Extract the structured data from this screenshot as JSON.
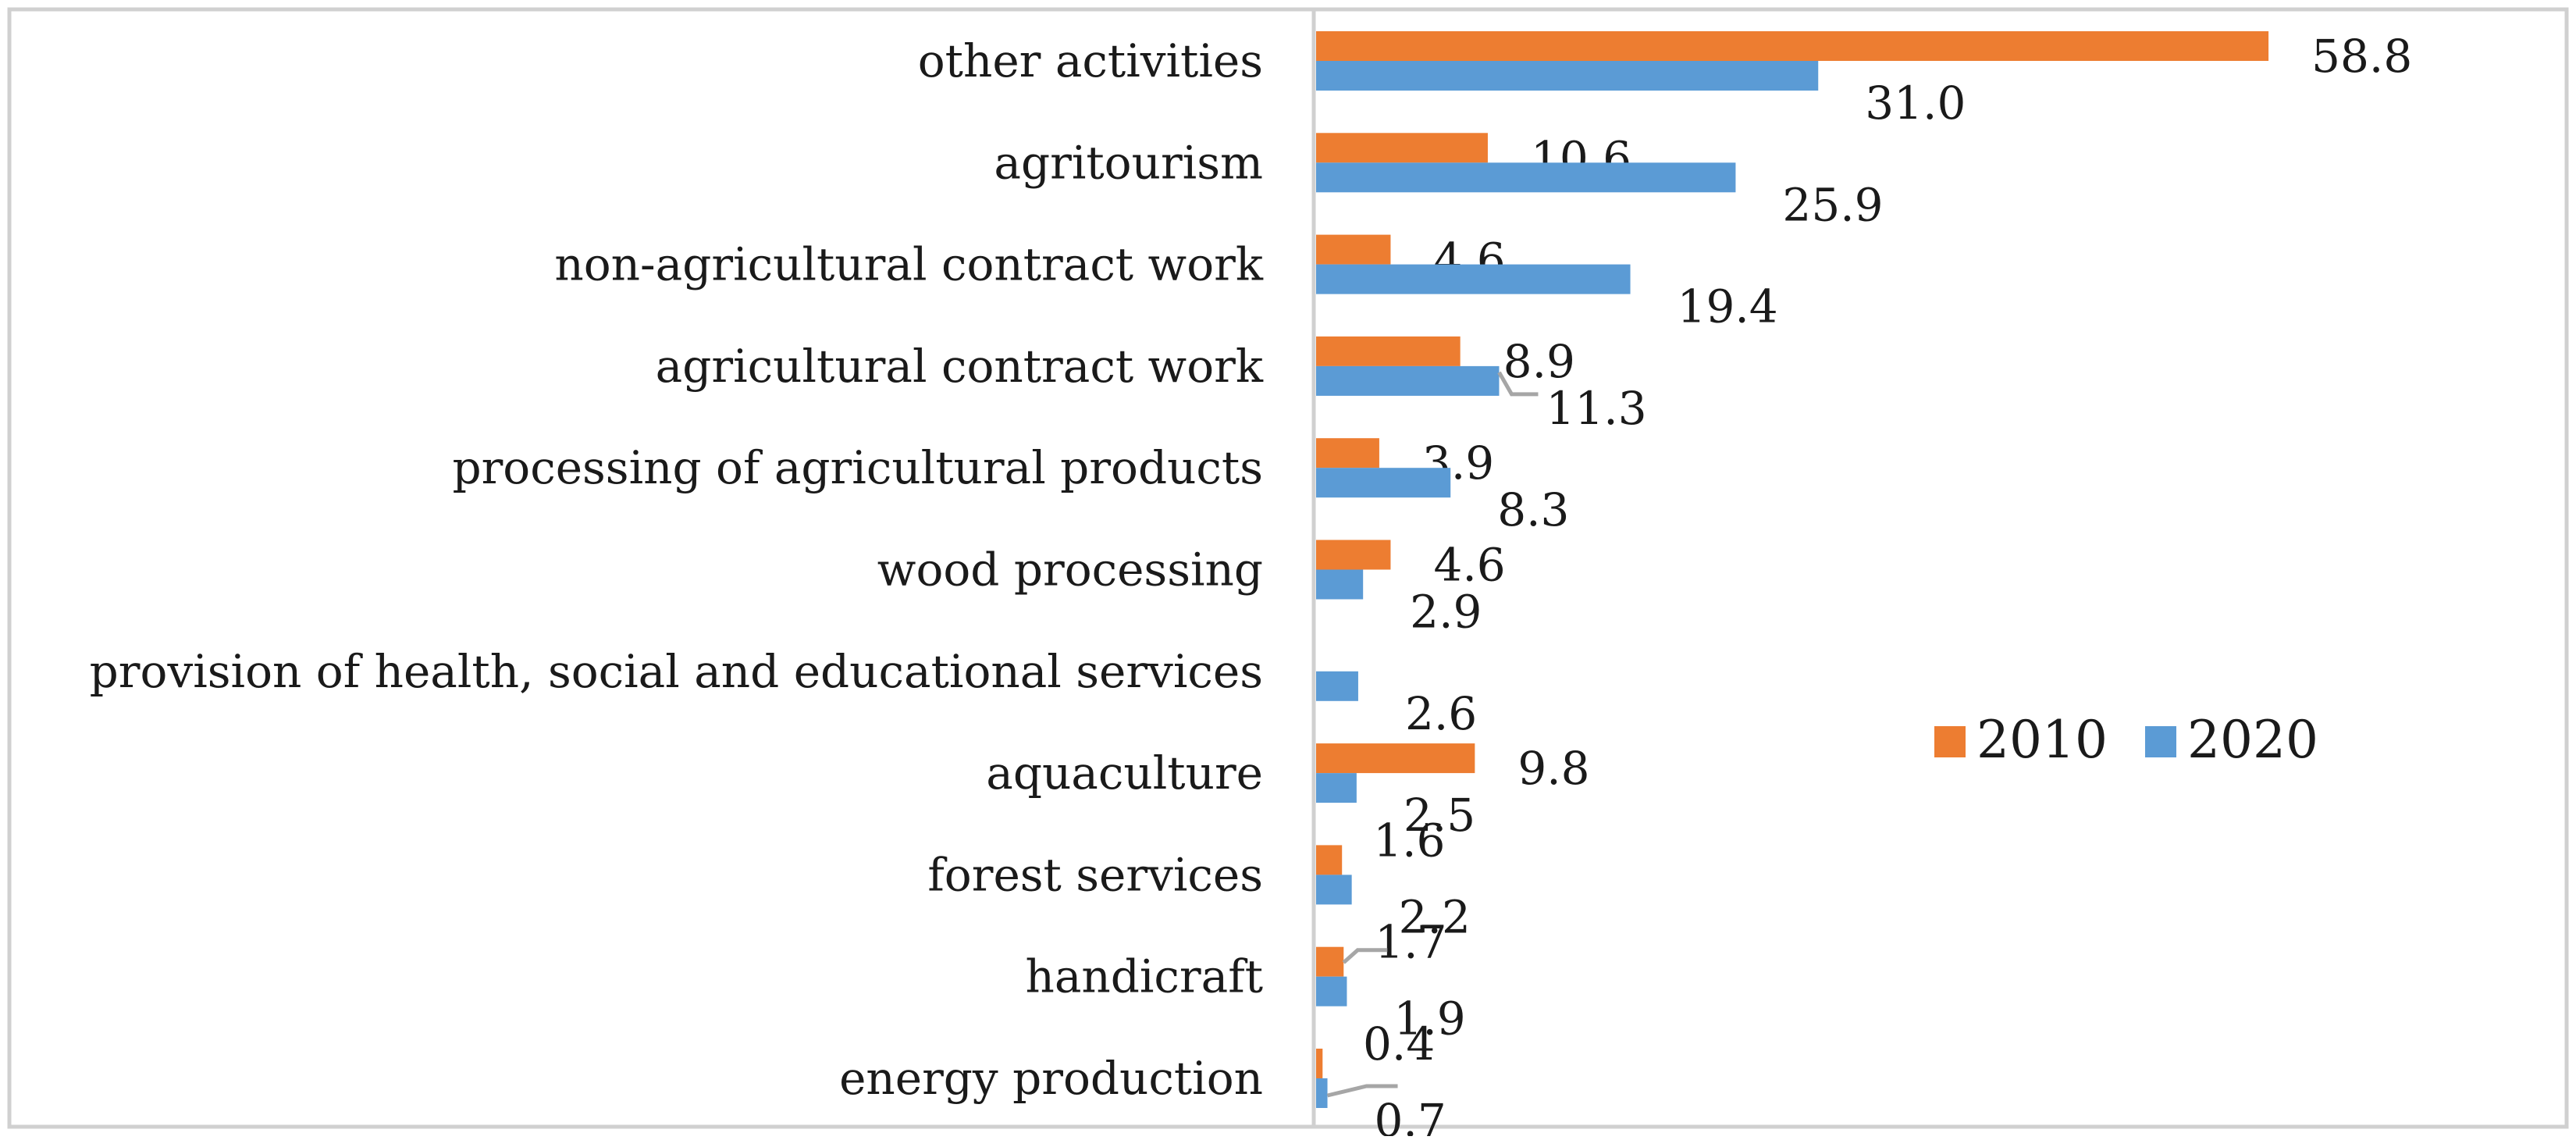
{
  "chart_data": {
    "type": "bar",
    "orientation": "horizontal",
    "title": "",
    "xlabel": "",
    "ylabel": "",
    "xlim": [
      0,
      60
    ],
    "grid": false,
    "legend_position": "right",
    "categories": [
      "other activities",
      "agritourism ",
      "non-agricultural contract work",
      "agricultural contract work",
      "processing of agricultural products",
      "wood processing",
      "provision of health, social and educational services",
      "aquaculture",
      "forest services",
      "handicraft ",
      "energy production"
    ],
    "series": [
      {
        "name": "2010",
        "color": "#ED7D31",
        "values": [
          58.8,
          10.6,
          4.6,
          8.9,
          3.9,
          4.6,
          null,
          9.8,
          1.6,
          1.7,
          0.4
        ],
        "labels": [
          "58.8",
          "10.6",
          "4.6",
          "8.9",
          "3.9",
          "4.6",
          "",
          "9.8",
          "1.6",
          "1.7",
          "0.4"
        ]
      },
      {
        "name": "2020",
        "color": "#5B9BD5",
        "values": [
          31.0,
          25.9,
          19.4,
          11.3,
          8.3,
          2.9,
          2.6,
          2.5,
          2.2,
          1.9,
          0.7
        ],
        "labels": [
          "31.0",
          "25.9",
          "19.4",
          "11.3",
          "8.3",
          "2.9",
          "2.6",
          "2.5",
          "2.2",
          "1.9",
          "0.7"
        ]
      }
    ]
  }
}
